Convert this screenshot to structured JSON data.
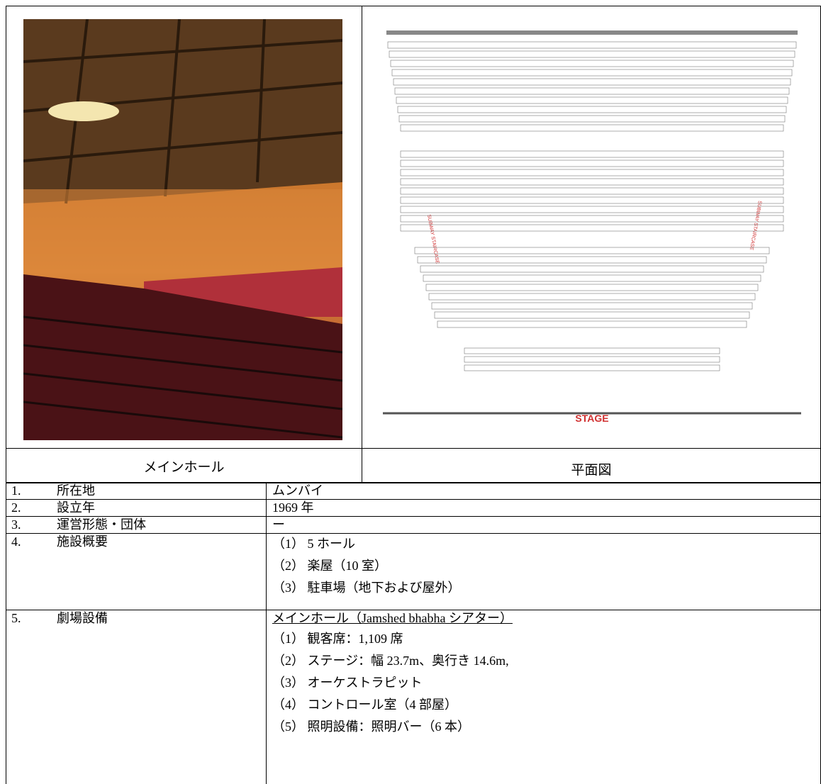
{
  "photo_caption": "メインホール",
  "plan_caption": "平面図",
  "plan": {
    "stage": "STAGE",
    "staircase_left": "SUBWAY STAIRCASE",
    "staircase_right": "SUBWAY STAIRCASE"
  },
  "table": {
    "rows": [
      {
        "num": "1.",
        "label": "所在地",
        "lines": [
          "ムンバイ"
        ]
      },
      {
        "num": "2.",
        "label": "設立年",
        "lines": [
          "1969 年"
        ]
      },
      {
        "num": "3.",
        "label": "運営形態・団体",
        "lines": [
          "ー"
        ]
      },
      {
        "num": "4.",
        "label": "施設概要",
        "lines": [
          "（1） 5 ホール",
          "（2） 楽屋（10 室）",
          "（3） 駐車場（地下および屋外）"
        ]
      },
      {
        "num": "5.",
        "label": "劇場設備",
        "heading": "メインホール（Jamshed bhabha シアター）",
        "lines": [
          "（1） 観客席：1,109 席",
          "（2） ステージ：幅 23.7m、奥行き 14.6m,",
          "（3） オーケストラピット",
          "（4） コントロール室（4 部屋）",
          "（5） 照明設備：照明バー（6 本）"
        ]
      }
    ]
  }
}
